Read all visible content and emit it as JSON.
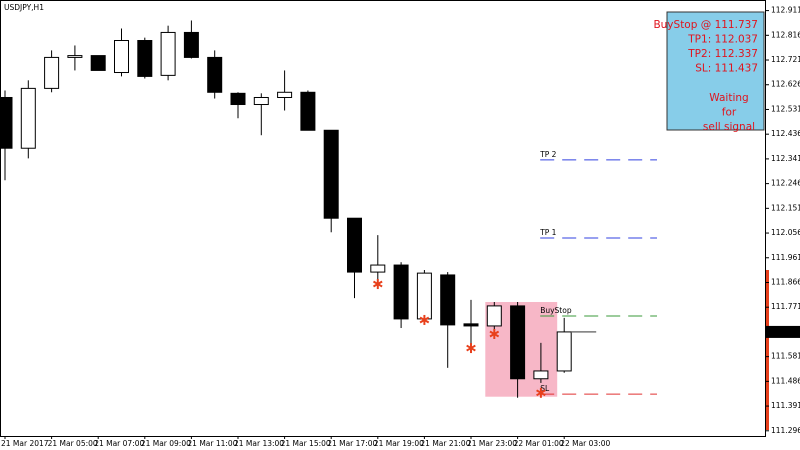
{
  "chart_data": {
    "type": "candlestick",
    "title": "USDJPY,H1",
    "categories": [
      "21 Mar 2017",
      null,
      "21 Mar 05:00",
      null,
      "21 Mar 07:00",
      null,
      "21 Mar 09:00",
      null,
      "21 Mar 11:00",
      null,
      "21 Mar 13:00",
      null,
      "21 Mar 15:00",
      null,
      "21 Mar 17:00",
      null,
      "21 Mar 19:00",
      null,
      "21 Mar 21:00",
      null,
      "21 Mar 23:00",
      null,
      "22 Mar 01:00",
      null,
      "22 Mar 03:00"
    ],
    "open": [
      112.577,
      112.382,
      112.612,
      112.731,
      112.738,
      112.673,
      112.796,
      112.662,
      112.827,
      112.731,
      112.593,
      112.55,
      112.577,
      112.597,
      112.451,
      112.113,
      111.906,
      111.933,
      111.726,
      111.895,
      111.707,
      111.699,
      111.776,
      111.496,
      111.526
    ],
    "high": [
      112.604,
      112.643,
      112.758,
      112.777,
      112.738,
      112.842,
      112.807,
      112.853,
      112.873,
      112.758,
      112.597,
      112.593,
      112.681,
      112.604,
      112.451,
      112.113,
      112.048,
      111.944,
      111.914,
      111.906,
      111.799,
      111.791,
      111.791,
      111.634,
      111.73
    ],
    "low": [
      112.259,
      112.343,
      112.597,
      112.681,
      112.681,
      112.658,
      112.65,
      112.643,
      112.727,
      112.573,
      112.497,
      112.432,
      112.527,
      112.451,
      112.059,
      111.806,
      111.868,
      111.691,
      111.714,
      111.538,
      111.607,
      111.684,
      111.423,
      111.48,
      111.519
    ],
    "close": [
      112.382,
      112.612,
      112.731,
      112.738,
      112.681,
      112.796,
      112.658,
      112.827,
      112.731,
      112.597,
      112.55,
      112.577,
      112.597,
      112.451,
      112.113,
      111.906,
      111.933,
      111.726,
      111.902,
      111.703,
      111.699,
      111.776,
      111.496,
      111.526,
      111.676
    ],
    "up_color": "#ffffff",
    "down_color": "#000000",
    "ylim": [
      111.276,
      112.944
    ],
    "yticks": [
      112.911,
      112.816,
      112.721,
      112.626,
      112.531,
      112.436,
      112.341,
      112.246,
      112.151,
      112.056,
      111.961,
      111.866,
      111.771,
      111.676,
      111.581,
      111.486,
      111.391,
      111.296
    ],
    "bid": 111.676,
    "grid": false,
    "levels": [
      {
        "name": "TP 2",
        "value": 112.337,
        "color": "#3040e0"
      },
      {
        "name": "TP 1",
        "value": 112.037,
        "color": "#3040e0"
      },
      {
        "name": "BuyStop",
        "value": 111.737,
        "color": "#3a9a3a"
      },
      {
        "name": "SL",
        "value": 111.437,
        "color": "#e03030"
      }
    ],
    "zone": {
      "start": 21,
      "end": 24,
      "top": 111.791,
      "bottom": 111.427,
      "color": "#f7b7c7"
    },
    "signals": {
      "color": "#e8401c",
      "points": [
        {
          "index": 16,
          "value": 111.86
        },
        {
          "index": 18,
          "value": 111.722
        },
        {
          "index": 20,
          "value": 111.614
        },
        {
          "index": 21,
          "value": 111.668
        },
        {
          "index": 23,
          "value": 111.442
        }
      ]
    },
    "info_box": {
      "color": "#87cde9",
      "lines": [
        "BuyStop @ 111.737",
        "TP1: 112.037",
        "TP2: 112.337",
        "SL: 111.437"
      ],
      "status": [
        "Waiting",
        "for",
        "sell signal"
      ]
    }
  }
}
